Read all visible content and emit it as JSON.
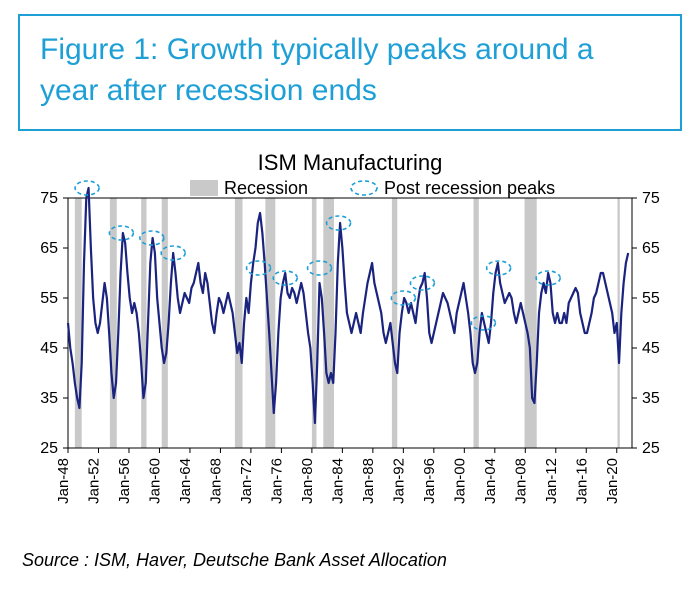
{
  "title": "Figure 1: Growth typically peaks around a year after recession ends",
  "chart": {
    "type": "line",
    "title": "ISM Manufacturing",
    "title_fontsize": 22,
    "legend": {
      "items": [
        {
          "label": "Recession",
          "swatch": "band"
        },
        {
          "label": "Post recession peaks",
          "swatch": "ellipse"
        }
      ],
      "fontsize": 18
    },
    "colors": {
      "line": "#1a237e",
      "recession_band": "#c9c9c9",
      "peak_ellipse_stroke": "#1e9fd6",
      "axis": "#000000",
      "background": "#ffffff",
      "border": "#000000"
    },
    "line_width": 2.2,
    "ylim": [
      25,
      75
    ],
    "y_ticks": [
      25,
      35,
      45,
      55,
      65,
      75
    ],
    "x_range": [
      1948,
      2022
    ],
    "x_ticks": [
      "Jan-48",
      "Jan-52",
      "Jan-56",
      "Jan-60",
      "Jan-64",
      "Jan-68",
      "Jan-72",
      "Jan-76",
      "Jan-80",
      "Jan-84",
      "Jan-88",
      "Jan-92",
      "Jan-96",
      "Jan-00",
      "Jan-04",
      "Jan-08",
      "Jan-12",
      "Jan-16",
      "Jan-20"
    ],
    "recessions": [
      [
        1948.9,
        1949.8
      ],
      [
        1953.5,
        1954.4
      ],
      [
        1957.6,
        1958.3
      ],
      [
        1960.3,
        1961.1
      ],
      [
        1969.9,
        1970.9
      ],
      [
        1973.9,
        1975.2
      ],
      [
        1980.0,
        1980.6
      ],
      [
        1981.5,
        1982.9
      ],
      [
        1990.5,
        1991.2
      ],
      [
        2001.2,
        2001.9
      ],
      [
        2007.9,
        2009.5
      ],
      [
        2020.1,
        2020.4
      ]
    ],
    "peaks": [
      [
        1950.5,
        77
      ],
      [
        1955.0,
        68
      ],
      [
        1959.0,
        67
      ],
      [
        1961.8,
        64
      ],
      [
        1973.0,
        61
      ],
      [
        1976.5,
        59
      ],
      [
        1981.0,
        61
      ],
      [
        1983.5,
        70
      ],
      [
        1992.0,
        55
      ],
      [
        1994.5,
        58
      ],
      [
        2002.5,
        50
      ],
      [
        2004.5,
        61
      ],
      [
        2011.0,
        59
      ]
    ],
    "series": [
      [
        1948.0,
        50
      ],
      [
        1948.3,
        45
      ],
      [
        1948.6,
        42
      ],
      [
        1948.9,
        38
      ],
      [
        1949.2,
        35
      ],
      [
        1949.5,
        33
      ],
      [
        1949.8,
        42
      ],
      [
        1950.1,
        62
      ],
      [
        1950.4,
        75
      ],
      [
        1950.7,
        77
      ],
      [
        1951.0,
        65
      ],
      [
        1951.3,
        55
      ],
      [
        1951.6,
        50
      ],
      [
        1951.9,
        48
      ],
      [
        1952.2,
        50
      ],
      [
        1952.5,
        54
      ],
      [
        1952.8,
        58
      ],
      [
        1953.1,
        55
      ],
      [
        1953.4,
        48
      ],
      [
        1953.7,
        40
      ],
      [
        1954.0,
        35
      ],
      [
        1954.3,
        38
      ],
      [
        1954.6,
        48
      ],
      [
        1954.9,
        60
      ],
      [
        1955.2,
        68
      ],
      [
        1955.5,
        66
      ],
      [
        1955.8,
        60
      ],
      [
        1956.1,
        55
      ],
      [
        1956.4,
        52
      ],
      [
        1956.7,
        54
      ],
      [
        1957.0,
        52
      ],
      [
        1957.3,
        48
      ],
      [
        1957.6,
        42
      ],
      [
        1957.9,
        35
      ],
      [
        1958.2,
        38
      ],
      [
        1958.5,
        50
      ],
      [
        1958.8,
        62
      ],
      [
        1959.1,
        67
      ],
      [
        1959.4,
        64
      ],
      [
        1959.7,
        55
      ],
      [
        1960.0,
        50
      ],
      [
        1960.3,
        45
      ],
      [
        1960.6,
        42
      ],
      [
        1960.9,
        44
      ],
      [
        1961.2,
        50
      ],
      [
        1961.5,
        58
      ],
      [
        1961.8,
        64
      ],
      [
        1962.1,
        60
      ],
      [
        1962.4,
        55
      ],
      [
        1962.7,
        52
      ],
      [
        1963.0,
        54
      ],
      [
        1963.3,
        56
      ],
      [
        1963.6,
        55
      ],
      [
        1963.9,
        54
      ],
      [
        1964.2,
        57
      ],
      [
        1964.5,
        58
      ],
      [
        1964.8,
        60
      ],
      [
        1965.1,
        62
      ],
      [
        1965.4,
        58
      ],
      [
        1965.7,
        56
      ],
      [
        1966.0,
        60
      ],
      [
        1966.3,
        58
      ],
      [
        1966.6,
        54
      ],
      [
        1966.9,
        50
      ],
      [
        1967.2,
        48
      ],
      [
        1967.5,
        52
      ],
      [
        1967.8,
        55
      ],
      [
        1968.1,
        54
      ],
      [
        1968.4,
        52
      ],
      [
        1968.7,
        54
      ],
      [
        1969.0,
        56
      ],
      [
        1969.3,
        54
      ],
      [
        1969.6,
        52
      ],
      [
        1969.9,
        48
      ],
      [
        1970.2,
        44
      ],
      [
        1970.5,
        46
      ],
      [
        1970.8,
        42
      ],
      [
        1971.1,
        50
      ],
      [
        1971.4,
        55
      ],
      [
        1971.7,
        52
      ],
      [
        1972.0,
        58
      ],
      [
        1972.3,
        62
      ],
      [
        1972.6,
        65
      ],
      [
        1972.9,
        70
      ],
      [
        1973.2,
        72
      ],
      [
        1973.5,
        68
      ],
      [
        1973.8,
        62
      ],
      [
        1974.1,
        55
      ],
      [
        1974.4,
        48
      ],
      [
        1974.7,
        40
      ],
      [
        1975.0,
        32
      ],
      [
        1975.3,
        38
      ],
      [
        1975.6,
        48
      ],
      [
        1975.9,
        55
      ],
      [
        1976.2,
        58
      ],
      [
        1976.5,
        60
      ],
      [
        1976.8,
        56
      ],
      [
        1977.1,
        55
      ],
      [
        1977.4,
        57
      ],
      [
        1977.7,
        56
      ],
      [
        1978.0,
        54
      ],
      [
        1978.3,
        56
      ],
      [
        1978.6,
        58
      ],
      [
        1978.9,
        56
      ],
      [
        1979.2,
        52
      ],
      [
        1979.5,
        48
      ],
      [
        1979.8,
        45
      ],
      [
        1980.1,
        38
      ],
      [
        1980.4,
        30
      ],
      [
        1980.7,
        42
      ],
      [
        1981.0,
        58
      ],
      [
        1981.3,
        55
      ],
      [
        1981.6,
        48
      ],
      [
        1981.9,
        40
      ],
      [
        1982.2,
        38
      ],
      [
        1982.5,
        40
      ],
      [
        1982.8,
        38
      ],
      [
        1983.1,
        48
      ],
      [
        1983.4,
        62
      ],
      [
        1983.7,
        70
      ],
      [
        1984.0,
        65
      ],
      [
        1984.3,
        58
      ],
      [
        1984.6,
        52
      ],
      [
        1984.9,
        50
      ],
      [
        1985.2,
        48
      ],
      [
        1985.5,
        50
      ],
      [
        1985.8,
        52
      ],
      [
        1986.1,
        50
      ],
      [
        1986.4,
        48
      ],
      [
        1986.7,
        52
      ],
      [
        1987.0,
        55
      ],
      [
        1987.3,
        58
      ],
      [
        1987.6,
        60
      ],
      [
        1987.9,
        62
      ],
      [
        1988.2,
        58
      ],
      [
        1988.5,
        56
      ],
      [
        1988.8,
        54
      ],
      [
        1989.1,
        52
      ],
      [
        1989.4,
        48
      ],
      [
        1989.7,
        46
      ],
      [
        1990.0,
        48
      ],
      [
        1990.3,
        50
      ],
      [
        1990.6,
        46
      ],
      [
        1990.9,
        42
      ],
      [
        1991.2,
        40
      ],
      [
        1991.5,
        48
      ],
      [
        1991.8,
        52
      ],
      [
        1992.1,
        55
      ],
      [
        1992.4,
        54
      ],
      [
        1992.7,
        52
      ],
      [
        1993.0,
        54
      ],
      [
        1993.3,
        52
      ],
      [
        1993.6,
        50
      ],
      [
        1993.9,
        54
      ],
      [
        1994.2,
        57
      ],
      [
        1994.5,
        58
      ],
      [
        1994.8,
        60
      ],
      [
        1995.1,
        55
      ],
      [
        1995.4,
        48
      ],
      [
        1995.7,
        46
      ],
      [
        1996.0,
        48
      ],
      [
        1996.3,
        50
      ],
      [
        1996.6,
        52
      ],
      [
        1996.9,
        54
      ],
      [
        1997.2,
        56
      ],
      [
        1997.5,
        55
      ],
      [
        1997.8,
        54
      ],
      [
        1998.1,
        52
      ],
      [
        1998.4,
        50
      ],
      [
        1998.7,
        48
      ],
      [
        1999.0,
        52
      ],
      [
        1999.3,
        54
      ],
      [
        1999.6,
        56
      ],
      [
        1999.9,
        58
      ],
      [
        2000.2,
        55
      ],
      [
        2000.5,
        52
      ],
      [
        2000.8,
        48
      ],
      [
        2001.1,
        42
      ],
      [
        2001.4,
        40
      ],
      [
        2001.7,
        42
      ],
      [
        2002.0,
        48
      ],
      [
        2002.3,
        52
      ],
      [
        2002.6,
        50
      ],
      [
        2002.9,
        48
      ],
      [
        2003.2,
        46
      ],
      [
        2003.5,
        50
      ],
      [
        2003.8,
        56
      ],
      [
        2004.1,
        60
      ],
      [
        2004.4,
        62
      ],
      [
        2004.7,
        58
      ],
      [
        2005.0,
        56
      ],
      [
        2005.3,
        54
      ],
      [
        2005.6,
        55
      ],
      [
        2005.9,
        56
      ],
      [
        2006.2,
        55
      ],
      [
        2006.5,
        52
      ],
      [
        2006.8,
        50
      ],
      [
        2007.1,
        52
      ],
      [
        2007.4,
        54
      ],
      [
        2007.7,
        52
      ],
      [
        2008.0,
        50
      ],
      [
        2008.3,
        48
      ],
      [
        2008.6,
        45
      ],
      [
        2008.9,
        35
      ],
      [
        2009.2,
        34
      ],
      [
        2009.5,
        42
      ],
      [
        2009.8,
        52
      ],
      [
        2010.1,
        56
      ],
      [
        2010.4,
        58
      ],
      [
        2010.7,
        56
      ],
      [
        2011.0,
        60
      ],
      [
        2011.3,
        58
      ],
      [
        2011.6,
        52
      ],
      [
        2011.9,
        50
      ],
      [
        2012.2,
        52
      ],
      [
        2012.5,
        50
      ],
      [
        2012.8,
        50
      ],
      [
        2013.1,
        52
      ],
      [
        2013.4,
        50
      ],
      [
        2013.7,
        54
      ],
      [
        2014.0,
        55
      ],
      [
        2014.3,
        56
      ],
      [
        2014.6,
        57
      ],
      [
        2014.9,
        56
      ],
      [
        2015.2,
        52
      ],
      [
        2015.5,
        50
      ],
      [
        2015.8,
        48
      ],
      [
        2016.1,
        48
      ],
      [
        2016.4,
        50
      ],
      [
        2016.7,
        52
      ],
      [
        2017.0,
        55
      ],
      [
        2017.3,
        56
      ],
      [
        2017.6,
        58
      ],
      [
        2017.9,
        60
      ],
      [
        2018.2,
        60
      ],
      [
        2018.5,
        58
      ],
      [
        2018.8,
        56
      ],
      [
        2019.1,
        54
      ],
      [
        2019.4,
        52
      ],
      [
        2019.7,
        48
      ],
      [
        2020.0,
        50
      ],
      [
        2020.3,
        42
      ],
      [
        2020.6,
        52
      ],
      [
        2020.9,
        58
      ],
      [
        2021.2,
        62
      ],
      [
        2021.5,
        64
      ]
    ]
  },
  "source": "Source : ISM, Haver, Deutsche Bank Asset Allocation"
}
